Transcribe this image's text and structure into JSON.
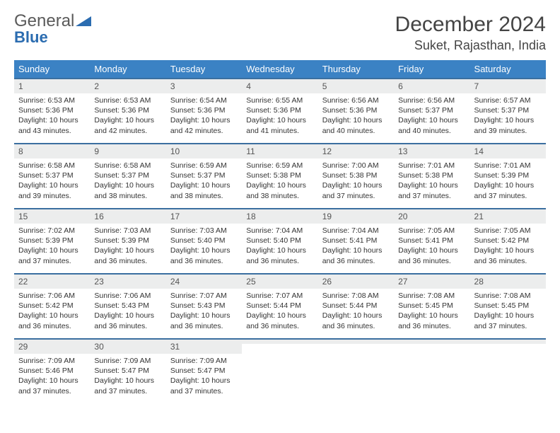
{
  "logo": {
    "text1": "General",
    "text2": "Blue"
  },
  "title": "December 2024",
  "location": "Suket, Rajasthan, India",
  "colors": {
    "header_bg": "#3b82c4",
    "header_text": "#ffffff",
    "row_divider": "#3b6fa0",
    "daynum_bg": "#eceded",
    "logo_gray": "#5a5a5a",
    "logo_blue": "#2b6cb0"
  },
  "weekdays": [
    "Sunday",
    "Monday",
    "Tuesday",
    "Wednesday",
    "Thursday",
    "Friday",
    "Saturday"
  ],
  "weeks": [
    [
      {
        "n": "1",
        "sunrise": "Sunrise: 6:53 AM",
        "sunset": "Sunset: 5:36 PM",
        "daylight": "Daylight: 10 hours and 43 minutes."
      },
      {
        "n": "2",
        "sunrise": "Sunrise: 6:53 AM",
        "sunset": "Sunset: 5:36 PM",
        "daylight": "Daylight: 10 hours and 42 minutes."
      },
      {
        "n": "3",
        "sunrise": "Sunrise: 6:54 AM",
        "sunset": "Sunset: 5:36 PM",
        "daylight": "Daylight: 10 hours and 42 minutes."
      },
      {
        "n": "4",
        "sunrise": "Sunrise: 6:55 AM",
        "sunset": "Sunset: 5:36 PM",
        "daylight": "Daylight: 10 hours and 41 minutes."
      },
      {
        "n": "5",
        "sunrise": "Sunrise: 6:56 AM",
        "sunset": "Sunset: 5:36 PM",
        "daylight": "Daylight: 10 hours and 40 minutes."
      },
      {
        "n": "6",
        "sunrise": "Sunrise: 6:56 AM",
        "sunset": "Sunset: 5:37 PM",
        "daylight": "Daylight: 10 hours and 40 minutes."
      },
      {
        "n": "7",
        "sunrise": "Sunrise: 6:57 AM",
        "sunset": "Sunset: 5:37 PM",
        "daylight": "Daylight: 10 hours and 39 minutes."
      }
    ],
    [
      {
        "n": "8",
        "sunrise": "Sunrise: 6:58 AM",
        "sunset": "Sunset: 5:37 PM",
        "daylight": "Daylight: 10 hours and 39 minutes."
      },
      {
        "n": "9",
        "sunrise": "Sunrise: 6:58 AM",
        "sunset": "Sunset: 5:37 PM",
        "daylight": "Daylight: 10 hours and 38 minutes."
      },
      {
        "n": "10",
        "sunrise": "Sunrise: 6:59 AM",
        "sunset": "Sunset: 5:37 PM",
        "daylight": "Daylight: 10 hours and 38 minutes."
      },
      {
        "n": "11",
        "sunrise": "Sunrise: 6:59 AM",
        "sunset": "Sunset: 5:38 PM",
        "daylight": "Daylight: 10 hours and 38 minutes."
      },
      {
        "n": "12",
        "sunrise": "Sunrise: 7:00 AM",
        "sunset": "Sunset: 5:38 PM",
        "daylight": "Daylight: 10 hours and 37 minutes."
      },
      {
        "n": "13",
        "sunrise": "Sunrise: 7:01 AM",
        "sunset": "Sunset: 5:38 PM",
        "daylight": "Daylight: 10 hours and 37 minutes."
      },
      {
        "n": "14",
        "sunrise": "Sunrise: 7:01 AM",
        "sunset": "Sunset: 5:39 PM",
        "daylight": "Daylight: 10 hours and 37 minutes."
      }
    ],
    [
      {
        "n": "15",
        "sunrise": "Sunrise: 7:02 AM",
        "sunset": "Sunset: 5:39 PM",
        "daylight": "Daylight: 10 hours and 37 minutes."
      },
      {
        "n": "16",
        "sunrise": "Sunrise: 7:03 AM",
        "sunset": "Sunset: 5:39 PM",
        "daylight": "Daylight: 10 hours and 36 minutes."
      },
      {
        "n": "17",
        "sunrise": "Sunrise: 7:03 AM",
        "sunset": "Sunset: 5:40 PM",
        "daylight": "Daylight: 10 hours and 36 minutes."
      },
      {
        "n": "18",
        "sunrise": "Sunrise: 7:04 AM",
        "sunset": "Sunset: 5:40 PM",
        "daylight": "Daylight: 10 hours and 36 minutes."
      },
      {
        "n": "19",
        "sunrise": "Sunrise: 7:04 AM",
        "sunset": "Sunset: 5:41 PM",
        "daylight": "Daylight: 10 hours and 36 minutes."
      },
      {
        "n": "20",
        "sunrise": "Sunrise: 7:05 AM",
        "sunset": "Sunset: 5:41 PM",
        "daylight": "Daylight: 10 hours and 36 minutes."
      },
      {
        "n": "21",
        "sunrise": "Sunrise: 7:05 AM",
        "sunset": "Sunset: 5:42 PM",
        "daylight": "Daylight: 10 hours and 36 minutes."
      }
    ],
    [
      {
        "n": "22",
        "sunrise": "Sunrise: 7:06 AM",
        "sunset": "Sunset: 5:42 PM",
        "daylight": "Daylight: 10 hours and 36 minutes."
      },
      {
        "n": "23",
        "sunrise": "Sunrise: 7:06 AM",
        "sunset": "Sunset: 5:43 PM",
        "daylight": "Daylight: 10 hours and 36 minutes."
      },
      {
        "n": "24",
        "sunrise": "Sunrise: 7:07 AM",
        "sunset": "Sunset: 5:43 PM",
        "daylight": "Daylight: 10 hours and 36 minutes."
      },
      {
        "n": "25",
        "sunrise": "Sunrise: 7:07 AM",
        "sunset": "Sunset: 5:44 PM",
        "daylight": "Daylight: 10 hours and 36 minutes."
      },
      {
        "n": "26",
        "sunrise": "Sunrise: 7:08 AM",
        "sunset": "Sunset: 5:44 PM",
        "daylight": "Daylight: 10 hours and 36 minutes."
      },
      {
        "n": "27",
        "sunrise": "Sunrise: 7:08 AM",
        "sunset": "Sunset: 5:45 PM",
        "daylight": "Daylight: 10 hours and 36 minutes."
      },
      {
        "n": "28",
        "sunrise": "Sunrise: 7:08 AM",
        "sunset": "Sunset: 5:45 PM",
        "daylight": "Daylight: 10 hours and 37 minutes."
      }
    ],
    [
      {
        "n": "29",
        "sunrise": "Sunrise: 7:09 AM",
        "sunset": "Sunset: 5:46 PM",
        "daylight": "Daylight: 10 hours and 37 minutes."
      },
      {
        "n": "30",
        "sunrise": "Sunrise: 7:09 AM",
        "sunset": "Sunset: 5:47 PM",
        "daylight": "Daylight: 10 hours and 37 minutes."
      },
      {
        "n": "31",
        "sunrise": "Sunrise: 7:09 AM",
        "sunset": "Sunset: 5:47 PM",
        "daylight": "Daylight: 10 hours and 37 minutes."
      },
      {
        "n": "",
        "sunrise": "",
        "sunset": "",
        "daylight": ""
      },
      {
        "n": "",
        "sunrise": "",
        "sunset": "",
        "daylight": ""
      },
      {
        "n": "",
        "sunrise": "",
        "sunset": "",
        "daylight": ""
      },
      {
        "n": "",
        "sunrise": "",
        "sunset": "",
        "daylight": ""
      }
    ]
  ]
}
